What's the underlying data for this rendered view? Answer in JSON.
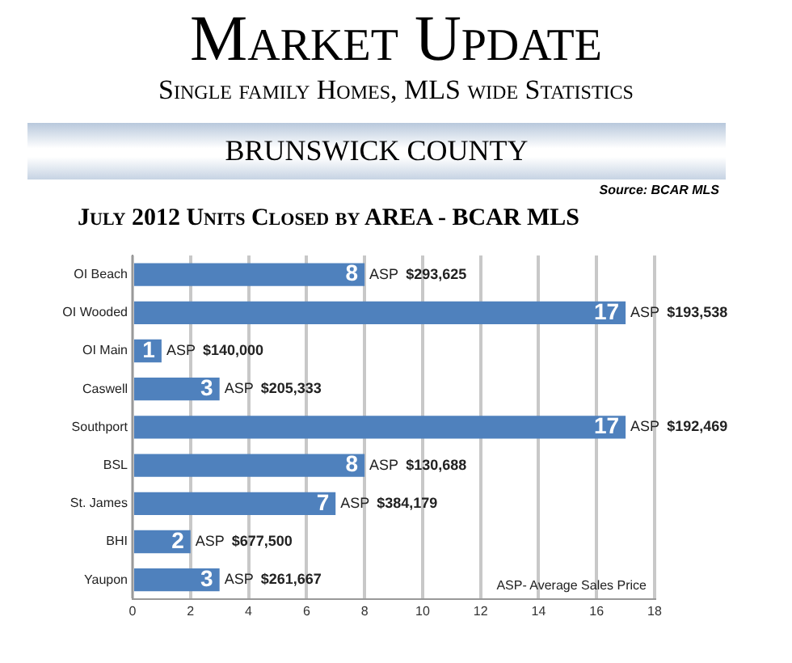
{
  "chart_data": {
    "type": "bar",
    "orientation": "horizontal",
    "title": "Market Update",
    "subtitle": "Single family Homes, MLS wide Statistics",
    "annotations": [
      "BRUNSWICK COUNTY",
      "Source: BCAR MLS",
      "July 2012 Units Closed by AREA -  BCAR MLS",
      {
        "text": "ASP $293,625",
        "x": 8,
        "y": "OI Beach"
      },
      {
        "text": "ASP $193,538",
        "x": 17,
        "y": "OI Wooded"
      },
      {
        "text": "ASP $140,000",
        "x": 1,
        "y": "OI Main"
      },
      {
        "text": "ASP $205,333",
        "x": 3,
        "y": "Caswell"
      },
      {
        "text": "ASP $192,469",
        "x": 17,
        "y": "Southport"
      },
      {
        "text": "ASP $130,688",
        "x": 8,
        "y": "BSL"
      },
      {
        "text": "ASP $384,179",
        "x": 7,
        "y": "St. James"
      },
      {
        "text": "ASP $677,500",
        "x": 2,
        "y": "BHI"
      },
      {
        "text": "ASP $261,667",
        "x": 3,
        "y": "Yaupon"
      },
      "ASP- Average Sales Price"
    ],
    "categories": [
      "OI Beach",
      "OI Wooded",
      "OI Main",
      "Caswell",
      "Southport",
      "BSL",
      "St. James",
      "BHI",
      "Yaupon"
    ],
    "values": [
      8,
      17,
      1,
      3,
      17,
      8,
      7,
      2,
      3
    ],
    "color": "#4f81bd",
    "xlim": [
      0,
      18
    ],
    "xticks": [
      0,
      2,
      4,
      6,
      8,
      10,
      12,
      14,
      16,
      18
    ],
    "grid": "x",
    "data_labels": true
  }
}
